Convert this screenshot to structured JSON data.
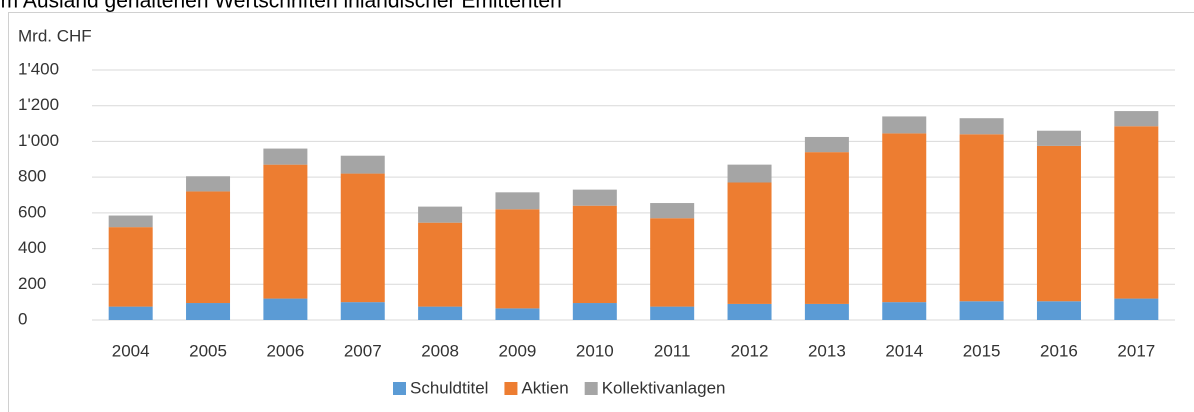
{
  "chart_data": {
    "type": "stacked_bar",
    "title": "im Ausland gehaltenen Wertschriften inländischer Emittenten",
    "y_label": "Mrd. CHF",
    "categories": [
      "2004",
      "2005",
      "2006",
      "2007",
      "2008",
      "2009",
      "2010",
      "2011",
      "2012",
      "2013",
      "2014",
      "2015",
      "2016",
      "2017"
    ],
    "series": [
      {
        "name": "Schuldtitel",
        "color": "#5b9bd5",
        "values": [
          75,
          95,
          120,
          100,
          75,
          65,
          95,
          75,
          90,
          90,
          100,
          105,
          105,
          120
        ]
      },
      {
        "name": "Aktien",
        "color": "#ed7d31",
        "values": [
          445,
          625,
          750,
          720,
          470,
          555,
          545,
          495,
          680,
          850,
          945,
          935,
          870,
          965
        ]
      },
      {
        "name": "Kollektivanlagen",
        "color": "#a5a5a5",
        "values": [
          65,
          85,
          90,
          100,
          90,
          95,
          90,
          85,
          100,
          85,
          95,
          90,
          85,
          85
        ]
      }
    ],
    "ylim": [
      0,
      1400
    ],
    "yticks": [
      0,
      200,
      400,
      600,
      800,
      {
        "value": 1000,
        "label": "1'000"
      },
      {
        "value": 1200,
        "label": "1'200"
      },
      {
        "value": 1400,
        "label": "1'400"
      }
    ],
    "grid": true,
    "legend": "bottom"
  }
}
